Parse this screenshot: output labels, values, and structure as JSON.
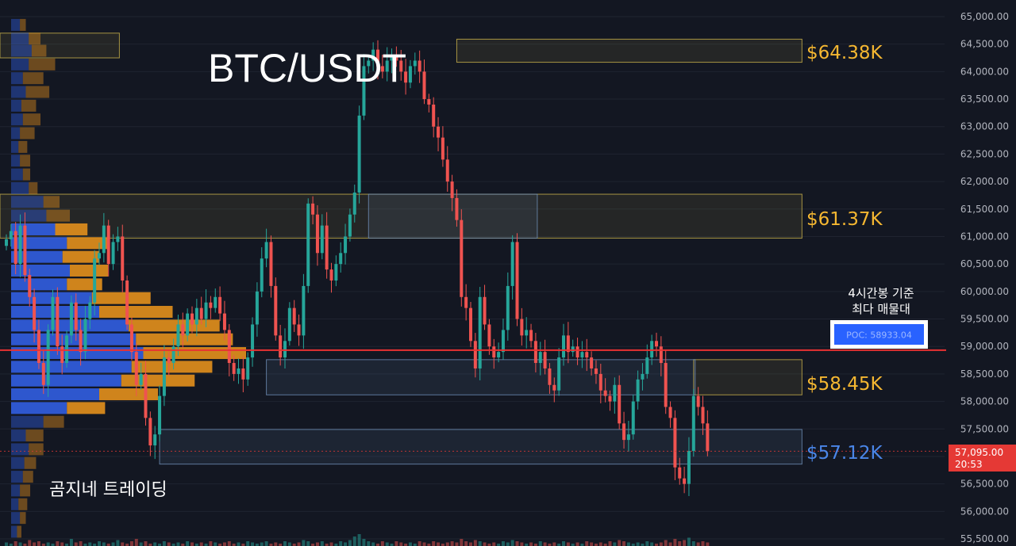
{
  "colors": {
    "background": "#131722",
    "grid": "#1f2430",
    "up": "#26a69a",
    "down": "#ef5350",
    "level_label": "#f5b731",
    "support_label": "#4a86e8",
    "poc_line": "#e83232",
    "poc_badge": "#2962ff",
    "price_badge": "#e53935",
    "profile_buy": "#2f5bd8",
    "profile_sell": "#d98a1c",
    "zone_yellow": "#c9b14a",
    "zone_blue": "#6f8fb8"
  },
  "chart_data": {
    "type": "candlestick",
    "title": "BTC/USDT",
    "watermark": "곰지네 트레이딩",
    "y_axis": {
      "min": 55500,
      "max": 65000,
      "ticks": [
        "65,000.00",
        "64,500.00",
        "64,000.00",
        "63,500.00",
        "63,000.00",
        "62,500.00",
        "62,000.00",
        "61,500.00",
        "61,000.00",
        "60,500.00",
        "60,000.00",
        "59,500.00",
        "59,000.00",
        "58,500.00",
        "58,000.00",
        "57,500.00",
        "57,000.00",
        "56,500.00",
        "56,000.00",
        "55,500.00"
      ],
      "tick_values": [
        65000,
        64500,
        64000,
        63500,
        63000,
        62500,
        62000,
        61500,
        61000,
        60500,
        60000,
        59500,
        59000,
        58500,
        58000,
        57500,
        57000,
        56500,
        56000,
        55500
      ]
    },
    "last_price": {
      "value": 57095,
      "label": "57,095.00",
      "countdown": "20:53"
    },
    "poc": {
      "value": 58933.04,
      "label": "POC: 58933.04",
      "note_line1": "4시간봉 기준",
      "note_line2": "최다 매물대"
    },
    "levels": [
      {
        "label": "$64.38K",
        "value": 64380,
        "kind": "resistance"
      },
      {
        "label": "$61.37K",
        "value": 61370,
        "kind": "resistance"
      },
      {
        "label": "$58.45K",
        "value": 58450,
        "kind": "resistance"
      },
      {
        "label": "$57.12K",
        "value": 57120,
        "kind": "support"
      }
    ],
    "zones": [
      {
        "color": "yellow",
        "low": 64170,
        "high": 64590,
        "start_index": 97,
        "end_index": 171
      },
      {
        "color": "yellow",
        "low": 64250,
        "high": 64700,
        "start_index": 0,
        "end_index": 24
      },
      {
        "color": "yellow",
        "low": 60970,
        "high": 61770,
        "start_index": 0,
        "end_index": 171
      },
      {
        "color": "blue",
        "low": 60970,
        "high": 61770,
        "start_index": 78,
        "end_index": 114
      },
      {
        "color": "yellow",
        "low": 58120,
        "high": 58760,
        "start_index": 148,
        "end_index": 171
      },
      {
        "color": "blue",
        "low": 58120,
        "high": 58760,
        "start_index": 56,
        "end_index": 148
      },
      {
        "color": "blue",
        "low": 56860,
        "high": 57490,
        "start_index": 33,
        "end_index": 171
      }
    ],
    "volume_profile": [
      {
        "price": 64850,
        "buy": 0.06,
        "sell": 0.04
      },
      {
        "price": 64600,
        "buy": 0.12,
        "sell": 0.08
      },
      {
        "price": 64380,
        "buy": 0.14,
        "sell": 0.1
      },
      {
        "price": 64130,
        "buy": 0.12,
        "sell": 0.18
      },
      {
        "price": 63880,
        "buy": 0.08,
        "sell": 0.14
      },
      {
        "price": 63630,
        "buy": 0.1,
        "sell": 0.16
      },
      {
        "price": 63380,
        "buy": 0.07,
        "sell": 0.1
      },
      {
        "price": 63130,
        "buy": 0.08,
        "sell": 0.12
      },
      {
        "price": 62880,
        "buy": 0.06,
        "sell": 0.1
      },
      {
        "price": 62630,
        "buy": 0.05,
        "sell": 0.06
      },
      {
        "price": 62380,
        "buy": 0.06,
        "sell": 0.07
      },
      {
        "price": 62130,
        "buy": 0.08,
        "sell": 0.05
      },
      {
        "price": 61880,
        "buy": 0.12,
        "sell": 0.06
      },
      {
        "price": 61630,
        "buy": 0.22,
        "sell": 0.11
      },
      {
        "price": 61380,
        "buy": 0.24,
        "sell": 0.16
      },
      {
        "price": 61130,
        "buy": 0.3,
        "sell": 0.22
      },
      {
        "price": 60880,
        "buy": 0.38,
        "sell": 0.28
      },
      {
        "price": 60630,
        "buy": 0.35,
        "sell": 0.25
      },
      {
        "price": 60380,
        "buy": 0.4,
        "sell": 0.26
      },
      {
        "price": 60130,
        "buy": 0.38,
        "sell": 0.24
      },
      {
        "price": 59880,
        "buy": 0.55,
        "sell": 0.4
      },
      {
        "price": 59630,
        "buy": 0.6,
        "sell": 0.5
      },
      {
        "price": 59380,
        "buy": 0.8,
        "sell": 0.62
      },
      {
        "price": 59130,
        "buy": 0.85,
        "sell": 0.66
      },
      {
        "price": 58880,
        "buy": 0.9,
        "sell": 0.7
      },
      {
        "price": 58630,
        "buy": 0.82,
        "sell": 0.55
      },
      {
        "price": 58380,
        "buy": 0.75,
        "sell": 0.5
      },
      {
        "price": 58130,
        "buy": 0.6,
        "sell": 0.4
      },
      {
        "price": 57880,
        "buy": 0.38,
        "sell": 0.26
      },
      {
        "price": 57630,
        "buy": 0.22,
        "sell": 0.14
      },
      {
        "price": 57380,
        "buy": 0.1,
        "sell": 0.12
      },
      {
        "price": 57130,
        "buy": 0.12,
        "sell": 0.1
      },
      {
        "price": 56880,
        "buy": 0.09,
        "sell": 0.08
      },
      {
        "price": 56630,
        "buy": 0.08,
        "sell": 0.07
      },
      {
        "price": 56380,
        "buy": 0.06,
        "sell": 0.07
      },
      {
        "price": 56130,
        "buy": 0.05,
        "sell": 0.06
      },
      {
        "price": 55880,
        "buy": 0.06,
        "sell": 0.04
      },
      {
        "price": 55630,
        "buy": 0.04,
        "sell": 0.03
      }
    ],
    "path": [
      60950,
      61100,
      60500,
      61200,
      60300,
      59900,
      59300,
      58700,
      58300,
      59300,
      59900,
      59000,
      58700,
      59200,
      59800,
      59300,
      58900,
      59500,
      59800,
      60600,
      60700,
      61200,
      60500,
      60900,
      61000,
      60200,
      59400,
      58900,
      58300,
      58500,
      57700,
      57200,
      57400,
      58100,
      58800,
      58700,
      59000,
      59400,
      59200,
      59600,
      59400,
      59700,
      59500,
      59800,
      59700,
      59900,
      59600,
      59300,
      58700,
      58500,
      58600,
      58400,
      58800,
      59400,
      60000,
      60600,
      60900,
      60100,
      59200,
      58800,
      59100,
      59700,
      59400,
      59200,
      60100,
      61600,
      61400,
      60700,
      61200,
      60400,
      60200,
      60500,
      60700,
      61000,
      61400,
      61800,
      63200,
      64100,
      64200,
      64400,
      64100,
      64000,
      64200,
      64300,
      64200,
      64000,
      63800,
      64100,
      64200,
      64000,
      63500,
      63400,
      63000,
      62800,
      62400,
      62000,
      61700,
      61300,
      59900,
      59700,
      59100,
      58600,
      59900,
      59400,
      59000,
      58800,
      58900,
      59300,
      60100,
      60900,
      59500,
      59200,
      59300,
      59100,
      58700,
      58900,
      58600,
      58300,
      58200,
      58800,
      59200,
      58900,
      59000,
      58800,
      58900,
      58800,
      58600,
      58500,
      58200,
      58100,
      58000,
      58300,
      57600,
      57300,
      57400,
      58000,
      58400,
      58500,
      58800,
      59100,
      59000,
      58700,
      57900,
      57700,
      56800,
      56600,
      56500,
      57100,
      58100,
      57900,
      57600,
      57095
    ],
    "volume": [
      3,
      2,
      4,
      3,
      2,
      5,
      3,
      4,
      2,
      3,
      2,
      4,
      3,
      2,
      6,
      3,
      4,
      2,
      3,
      2,
      4,
      3,
      2,
      3,
      5,
      3,
      2,
      4,
      6,
      3,
      4,
      2,
      3,
      2,
      4,
      3,
      2,
      3,
      2,
      4,
      3,
      2,
      3,
      2,
      4,
      3,
      2,
      3,
      4,
      2,
      3,
      2,
      4,
      3,
      2,
      3,
      4,
      2,
      3,
      2,
      4,
      3,
      2,
      3,
      5,
      4,
      2,
      3,
      4,
      2,
      3,
      2,
      4,
      3,
      5,
      8,
      10,
      6,
      4,
      3,
      2,
      4,
      3,
      2,
      4,
      3,
      2,
      3,
      2,
      4,
      3,
      2,
      4,
      3,
      2,
      3,
      4,
      3,
      6,
      4,
      3,
      5,
      4,
      3,
      2,
      3,
      2,
      4,
      3,
      5,
      4,
      3,
      2,
      3,
      2,
      4,
      3,
      2,
      3,
      2,
      4,
      3,
      2,
      3,
      2,
      4,
      3,
      2,
      3,
      2,
      4,
      3,
      5,
      4,
      3,
      2,
      3,
      2,
      4,
      3,
      2,
      3,
      5,
      3,
      6,
      4,
      5,
      7,
      4,
      3,
      4,
      3
    ]
  }
}
